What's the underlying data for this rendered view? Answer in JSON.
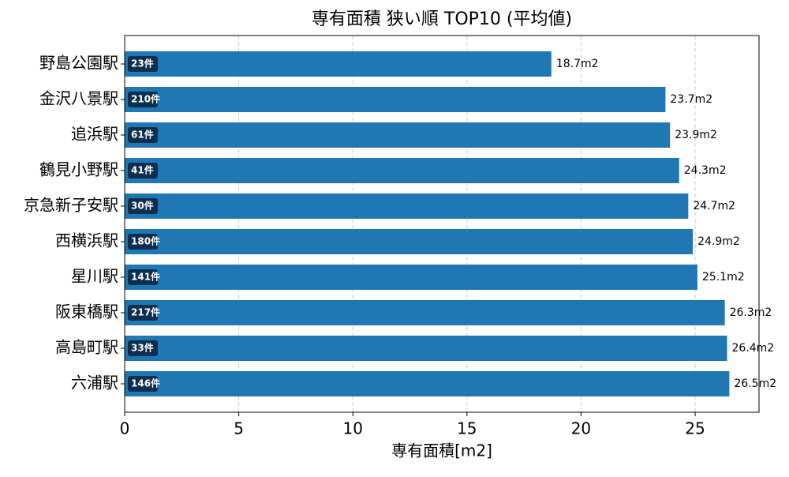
{
  "chart_data": {
    "type": "barh",
    "title": "専有面積 狭い順 TOP10 (平均値)",
    "xlabel": "専有面積[m2]",
    "categories": [
      "野島公園駅",
      "金沢八景駅",
      "追浜駅",
      "鶴見小野駅",
      "京急新子安駅",
      "西横浜駅",
      "星川駅",
      "阪東橋駅",
      "高島町駅",
      "六浦駅"
    ],
    "values": [
      18.7,
      23.7,
      23.9,
      24.3,
      24.7,
      24.9,
      25.1,
      26.3,
      26.4,
      26.5
    ],
    "value_labels": [
      "18.7m2",
      "23.7m2",
      "23.9m2",
      "24.3m2",
      "24.7m2",
      "24.9m2",
      "25.1m2",
      "26.3m2",
      "26.4m2",
      "26.5m2"
    ],
    "count_labels": [
      "23件",
      "210件",
      "61件",
      "41件",
      "30件",
      "180件",
      "141件",
      "217件",
      "33件",
      "146件"
    ],
    "color": "#1f77b4",
    "xlim": [
      0,
      27.8
    ],
    "xticks": [
      0,
      5,
      10,
      15,
      20,
      25
    ],
    "grid": true
  }
}
